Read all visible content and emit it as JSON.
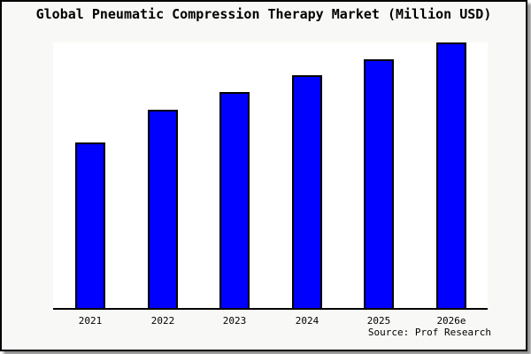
{
  "window": {
    "background": "#f8f8f6",
    "frame_border_color": "#000000",
    "shadow_color": "#8f8f8f"
  },
  "chart_data": {
    "type": "bar",
    "title": "Global Pneumatic Compression Therapy Market (Million USD)",
    "categories": [
      "2021",
      "2022",
      "2023",
      "2024",
      "2025",
      "2026e"
    ],
    "values": [
      62.3,
      74.7,
      81.3,
      87.7,
      93.7,
      100
    ],
    "value_note": "relative bar heights as % of tallest (2026e) bar; no y-axis or gridlines are shown in the chart",
    "ylim": [
      0,
      100
    ],
    "grid": false,
    "legend": false,
    "bar_fill": "#0000ff",
    "bar_border": "#000000",
    "plot_background": "#ffffff",
    "xlabel": "",
    "ylabel": "",
    "source": "Source: Prof Research"
  }
}
